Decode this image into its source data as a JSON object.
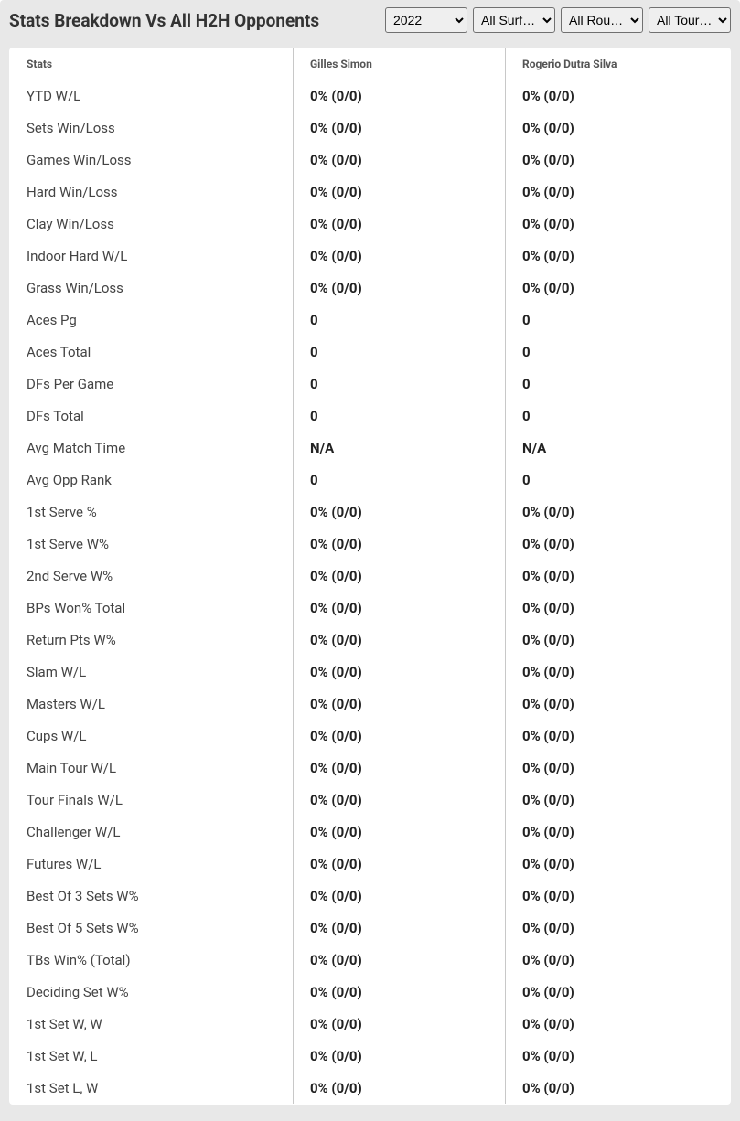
{
  "header": {
    "title": "Stats Breakdown Vs All H2H Opponents"
  },
  "filters": {
    "year": {
      "selected": "2022",
      "options": [
        "2022"
      ]
    },
    "surface": {
      "selected": "All Surf…",
      "options": [
        "All Surf…"
      ]
    },
    "round": {
      "selected": "All Rou…",
      "options": [
        "All Rou…"
      ]
    },
    "tour": {
      "selected": "All Tour…",
      "options": [
        "All Tour…"
      ]
    }
  },
  "table": {
    "columns": [
      "Stats",
      "Gilles Simon",
      "Rogerio Dutra Silva"
    ],
    "rows": [
      [
        "YTD W/L",
        "0% (0/0)",
        "0% (0/0)"
      ],
      [
        "Sets Win/Loss",
        "0% (0/0)",
        "0% (0/0)"
      ],
      [
        "Games Win/Loss",
        "0% (0/0)",
        "0% (0/0)"
      ],
      [
        "Hard Win/Loss",
        "0% (0/0)",
        "0% (0/0)"
      ],
      [
        "Clay Win/Loss",
        "0% (0/0)",
        "0% (0/0)"
      ],
      [
        "Indoor Hard W/L",
        "0% (0/0)",
        "0% (0/0)"
      ],
      [
        "Grass Win/Loss",
        "0% (0/0)",
        "0% (0/0)"
      ],
      [
        "Aces Pg",
        "0",
        "0"
      ],
      [
        "Aces Total",
        "0",
        "0"
      ],
      [
        "DFs Per Game",
        "0",
        "0"
      ],
      [
        "DFs Total",
        "0",
        "0"
      ],
      [
        "Avg Match Time",
        "N/A",
        "N/A"
      ],
      [
        "Avg Opp Rank",
        "0",
        "0"
      ],
      [
        "1st Serve %",
        "0% (0/0)",
        "0% (0/0)"
      ],
      [
        "1st Serve W%",
        "0% (0/0)",
        "0% (0/0)"
      ],
      [
        "2nd Serve W%",
        "0% (0/0)",
        "0% (0/0)"
      ],
      [
        "BPs Won% Total",
        "0% (0/0)",
        "0% (0/0)"
      ],
      [
        "Return Pts W%",
        "0% (0/0)",
        "0% (0/0)"
      ],
      [
        "Slam W/L",
        "0% (0/0)",
        "0% (0/0)"
      ],
      [
        "Masters W/L",
        "0% (0/0)",
        "0% (0/0)"
      ],
      [
        "Cups W/L",
        "0% (0/0)",
        "0% (0/0)"
      ],
      [
        "Main Tour W/L",
        "0% (0/0)",
        "0% (0/0)"
      ],
      [
        "Tour Finals W/L",
        "0% (0/0)",
        "0% (0/0)"
      ],
      [
        "Challenger W/L",
        "0% (0/0)",
        "0% (0/0)"
      ],
      [
        "Futures W/L",
        "0% (0/0)",
        "0% (0/0)"
      ],
      [
        "Best Of 3 Sets W%",
        "0% (0/0)",
        "0% (0/0)"
      ],
      [
        "Best Of 5 Sets W%",
        "0% (0/0)",
        "0% (0/0)"
      ],
      [
        "TBs Win% (Total)",
        "0% (0/0)",
        "0% (0/0)"
      ],
      [
        "Deciding Set W%",
        "0% (0/0)",
        "0% (0/0)"
      ],
      [
        "1st Set W, W",
        "0% (0/0)",
        "0% (0/0)"
      ],
      [
        "1st Set W, L",
        "0% (0/0)",
        "0% (0/0)"
      ],
      [
        "1st Set L, W",
        "0% (0/0)",
        "0% (0/0)"
      ]
    ]
  },
  "styling": {
    "header_bg": "#e8e8e8",
    "table_border": "#b8b8b8",
    "cell_border": "#c8c8c8",
    "title_color": "#333",
    "header_text_color": "#555",
    "stat_text_color": "#444",
    "value_text_color": "#222",
    "title_fontsize": 19,
    "header_fontsize": 12,
    "cell_fontsize": 15
  }
}
